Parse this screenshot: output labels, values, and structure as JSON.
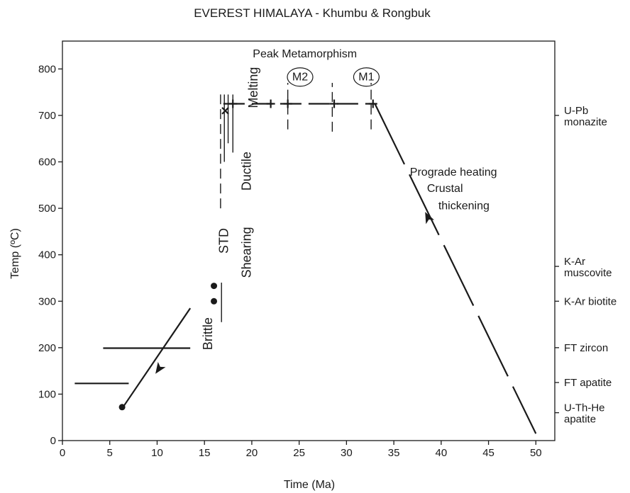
{
  "chart_data": {
    "type": "line",
    "title": "EVEREST HIMALAYA - Khumbu & Rongbuk",
    "xlabel": "Time (Ma)",
    "ylabel": "Temp (ºC)",
    "xlim": [
      0,
      52
    ],
    "ylim": [
      0,
      860
    ],
    "x_ticks": [
      0,
      5,
      10,
      15,
      20,
      25,
      30,
      35,
      40,
      45,
      50
    ],
    "y_ticks": [
      0,
      100,
      200,
      300,
      400,
      500,
      600,
      700,
      800
    ],
    "grid": false,
    "series": [
      {
        "style": "solid-with-arrow",
        "x": [
          6.5,
          13.5
        ],
        "y": [
          75,
          285
        ],
        "arrow_at": {
          "x": 10.2,
          "y": 155
        }
      },
      {
        "style": "long-dash-with-arrow",
        "x": [
          33,
          50
        ],
        "y": [
          725,
          15
        ],
        "arrow_at": {
          "x": 38.6,
          "y": 480
        }
      },
      {
        "style": "dash-with-crosses",
        "x": [
          17,
          33
        ],
        "y": [
          725,
          725
        ]
      }
    ],
    "cross_markers": [
      {
        "x": 18,
        "y": 725
      },
      {
        "x": 22,
        "y": 725
      },
      {
        "x": 23.8,
        "y": 725
      },
      {
        "x": 28.7,
        "y": 725
      },
      {
        "x": 32.8,
        "y": 725
      }
    ],
    "x_marker": {
      "x": 17.2,
      "y": 710
    },
    "dot_markers": [
      {
        "x": 6.3,
        "y": 72
      },
      {
        "x": 16,
        "y": 300
      },
      {
        "x": 16,
        "y": 333
      }
    ],
    "horizontal_bars": [
      {
        "label": "FT apatite range",
        "x": [
          1.3,
          7
        ],
        "y": 123
      },
      {
        "label": "FT zircon range",
        "x": [
          4.3,
          13.5
        ],
        "y": 199
      }
    ],
    "vertical_marks": [
      {
        "x": 16.8,
        "y": [
          255,
          340
        ],
        "style": "solid"
      },
      {
        "x": 16.7,
        "y": [
          500,
          745
        ],
        "style": "dashed"
      },
      {
        "x": 17.1,
        "y": [
          600,
          745
        ],
        "style": "solid"
      },
      {
        "x": 17.5,
        "y": [
          640,
          745
        ],
        "style": "solid"
      },
      {
        "x": 18,
        "y": [
          620,
          745
        ],
        "style": "solid"
      },
      {
        "x": 23.8,
        "y": [
          670,
          770
        ],
        "style": "dashed"
      },
      {
        "x": 28.5,
        "y": [
          665,
          770
        ],
        "style": "dashed"
      },
      {
        "x": 32.6,
        "y": [
          670,
          770
        ],
        "style": "dashed"
      }
    ],
    "annotations": [
      {
        "id": "peak",
        "text": "Peak Metamorphism",
        "x": 25.6,
        "y": 825
      },
      {
        "id": "m2",
        "text": "M2",
        "x": 25.1,
        "y": 775,
        "circled": true
      },
      {
        "id": "m1",
        "text": "M1",
        "x": 32.1,
        "y": 775,
        "circled": true
      },
      {
        "id": "melting",
        "text": "Melting",
        "x": 20.6,
        "y": 760,
        "rotate": -90
      },
      {
        "id": "ductile",
        "text": "Ductile",
        "x": 19.9,
        "y": 580,
        "rotate": -90
      },
      {
        "id": "shearing",
        "text": "Shearing",
        "x": 19.9,
        "y": 405,
        "rotate": -90
      },
      {
        "id": "std",
        "text": "STD",
        "x": 17.5,
        "y": 430,
        "rotate": -90
      },
      {
        "id": "brittle",
        "text": "Brittle",
        "x": 15.8,
        "y": 230,
        "rotate": -90
      },
      {
        "id": "prograde",
        "text": "Prograde heating",
        "x": 36.7,
        "y": 570
      },
      {
        "id": "crustal",
        "text": "Crustal",
        "x": 38.5,
        "y": 535
      },
      {
        "id": "thickening",
        "text": "thickening",
        "x": 39.7,
        "y": 498
      }
    ],
    "right_labels": [
      {
        "lines": [
          "U-Pb",
          "monazite"
        ],
        "y": 700
      },
      {
        "lines": [
          "K-Ar",
          "muscovite"
        ],
        "y": 375
      },
      {
        "lines": [
          "K-Ar biotite"
        ],
        "y": 300
      },
      {
        "lines": [
          "FT zircon"
        ],
        "y": 200
      },
      {
        "lines": [
          "FT apatite"
        ],
        "y": 125
      },
      {
        "lines": [
          "U-Th-He",
          "apatite"
        ],
        "y": 60
      }
    ]
  }
}
